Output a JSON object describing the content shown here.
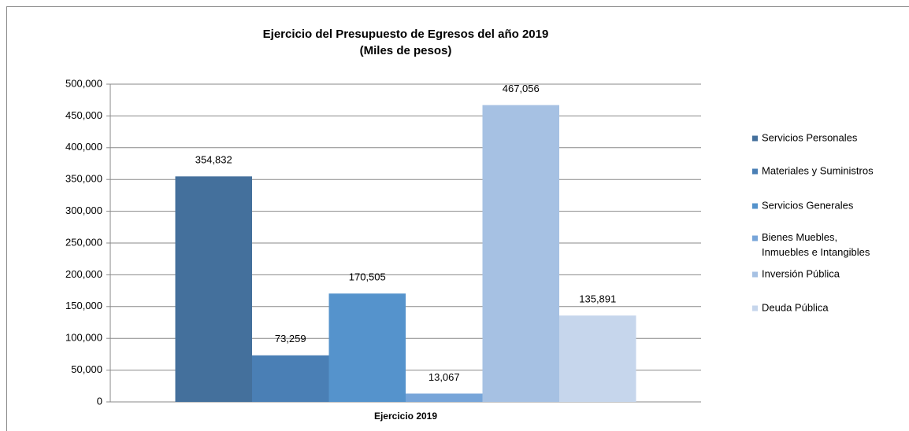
{
  "chart_data": {
    "type": "bar",
    "title": "Ejercicio del Presupuesto de Egresos del año 2019",
    "subtitle": "(Miles de pesos)",
    "categories": [
      "Ejercicio 2019"
    ],
    "series": [
      {
        "name": "Servicios Personales",
        "color": "#44709c",
        "values": [
          354832
        ],
        "value_labels": [
          "354,832"
        ]
      },
      {
        "name": "Materiales y Suministros",
        "color": "#4a7fb5",
        "values": [
          73259
        ],
        "value_labels": [
          "73,259"
        ]
      },
      {
        "name": "Servicios Generales",
        "color": "#5593cc",
        "values": [
          170505
        ],
        "value_labels": [
          "170,505"
        ]
      },
      {
        "name": "Bienes Muebles,\nInmuebles e Intangibles",
        "color": "#77a5d9",
        "values": [
          13067
        ],
        "value_labels": [
          "13,067"
        ]
      },
      {
        "name": "Inversión Pública",
        "color": "#a6c1e3",
        "values": [
          467056
        ],
        "value_labels": [
          "467,056"
        ]
      },
      {
        "name": "Deuda Pública",
        "color": "#c6d6ec",
        "values": [
          135891
        ],
        "value_labels": [
          "135,891"
        ]
      }
    ],
    "ylim": [
      0,
      500000
    ],
    "yticks": [
      0,
      {
        "value": 50000,
        "label": "50,000"
      },
      {
        "value": 100000,
        "label": "100,000"
      },
      {
        "value": 150000,
        "label": "150,000"
      },
      {
        "value": 200000,
        "label": "200,000"
      },
      {
        "value": 250000,
        "label": "250,000"
      },
      {
        "value": 300000,
        "label": "300,000"
      },
      {
        "value": 350000,
        "label": "350,000"
      },
      {
        "value": 400000,
        "label": "400,000"
      },
      {
        "value": 450000,
        "label": "450,000"
      },
      {
        "value": 500000,
        "label": "500,000"
      }
    ],
    "grid": true,
    "legend": "right"
  }
}
